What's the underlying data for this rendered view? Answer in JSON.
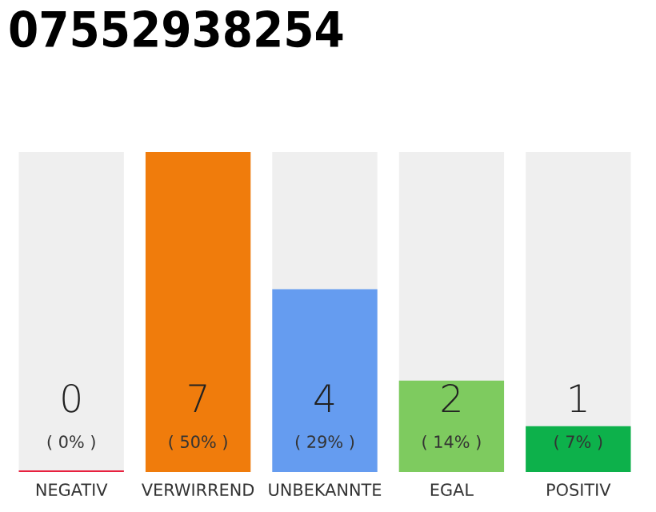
{
  "chart_data": {
    "type": "bar",
    "title": "07552938254",
    "categories": [
      "NEGATIV",
      "VERWIRREND",
      "UNBEKANNTE",
      "EGAL",
      "POSITIV"
    ],
    "values": [
      0,
      7,
      4,
      2,
      1
    ],
    "colors": [
      "#e8213f",
      "#f07c0c",
      "#659cf0",
      "#7ecb5f",
      "#0db14b"
    ],
    "ylim": [
      0,
      7
    ],
    "tick_labels": "x",
    "data_labels": true,
    "annotations": [
      "( 0% )",
      "( 50% )",
      "( 29% )",
      "( 14% )",
      "( 7% )"
    ]
  }
}
